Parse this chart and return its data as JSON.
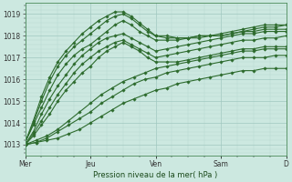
{
  "xlabel": "Pression niveau de la mer( hPa )",
  "bg_color": "#cce8e0",
  "grid_major_color": "#a0c8c0",
  "grid_minor_color": "#b8d8d0",
  "line_color": "#2d6b2d",
  "ylim": [
    1012.5,
    1019.5
  ],
  "xlim": [
    0,
    96
  ],
  "day_labels": [
    "Mer",
    "Jeu",
    "Ven",
    "Sam",
    "D"
  ],
  "day_positions": [
    0,
    24,
    48,
    72,
    96
  ],
  "series": [
    {
      "x": [
        0,
        4,
        8,
        12,
        16,
        20,
        24,
        28,
        32,
        36,
        40,
        44,
        48,
        52,
        56,
        60,
        64,
        68,
        72,
        76,
        80,
        84,
        88,
        92,
        96
      ],
      "y": [
        1013.0,
        1013.1,
        1013.2,
        1013.3,
        1013.5,
        1013.7,
        1014.0,
        1014.3,
        1014.6,
        1014.9,
        1015.1,
        1015.3,
        1015.5,
        1015.6,
        1015.8,
        1015.9,
        1016.0,
        1016.1,
        1016.2,
        1016.3,
        1016.4,
        1016.4,
        1016.5,
        1016.5,
        1016.5
      ]
    },
    {
      "x": [
        0,
        4,
        8,
        12,
        16,
        20,
        24,
        28,
        32,
        36,
        40,
        44,
        48,
        52,
        56,
        60,
        64,
        68,
        72,
        76,
        80,
        84,
        88,
        92,
        96
      ],
      "y": [
        1013.0,
        1013.1,
        1013.3,
        1013.6,
        1013.9,
        1014.2,
        1014.5,
        1014.9,
        1015.2,
        1015.5,
        1015.8,
        1016.0,
        1016.1,
        1016.3,
        1016.4,
        1016.5,
        1016.6,
        1016.7,
        1016.8,
        1016.9,
        1017.0,
        1017.0,
        1017.0,
        1017.1,
        1017.1
      ]
    },
    {
      "x": [
        0,
        4,
        8,
        12,
        16,
        20,
        24,
        28,
        32,
        36,
        40,
        44,
        48,
        52,
        56,
        60,
        64,
        68,
        72,
        76,
        80,
        84,
        88,
        92,
        96
      ],
      "y": [
        1013.0,
        1013.2,
        1013.4,
        1013.7,
        1014.1,
        1014.5,
        1014.9,
        1015.3,
        1015.6,
        1015.9,
        1016.1,
        1016.3,
        1016.5,
        1016.6,
        1016.7,
        1016.8,
        1016.9,
        1017.0,
        1017.1,
        1017.2,
        1017.3,
        1017.3,
        1017.4,
        1017.4,
        1017.4
      ]
    },
    {
      "x": [
        0,
        3,
        6,
        9,
        12,
        15,
        18,
        21,
        24,
        27,
        30,
        33,
        36,
        39,
        42,
        45,
        48,
        52,
        56,
        60,
        64,
        68,
        72,
        76,
        80,
        84,
        88,
        92,
        96
      ],
      "y": [
        1013.0,
        1013.4,
        1013.9,
        1014.4,
        1015.0,
        1015.5,
        1015.9,
        1016.3,
        1016.6,
        1017.0,
        1017.3,
        1017.5,
        1017.7,
        1017.5,
        1017.3,
        1017.0,
        1016.8,
        1016.8,
        1016.8,
        1016.9,
        1017.0,
        1017.1,
        1017.2,
        1017.3,
        1017.4,
        1017.4,
        1017.5,
        1017.5,
        1017.5
      ]
    },
    {
      "x": [
        0,
        3,
        6,
        9,
        12,
        15,
        18,
        21,
        24,
        27,
        30,
        33,
        36,
        39,
        42,
        45,
        48,
        52,
        56,
        60,
        64,
        68,
        72,
        76,
        80,
        84,
        88,
        92,
        96
      ],
      "y": [
        1013.0,
        1013.5,
        1014.1,
        1014.7,
        1015.3,
        1015.8,
        1016.3,
        1016.7,
        1017.0,
        1017.3,
        1017.5,
        1017.7,
        1017.8,
        1017.6,
        1017.4,
        1017.2,
        1017.0,
        1017.1,
        1017.2,
        1017.3,
        1017.4,
        1017.5,
        1017.6,
        1017.7,
        1017.8,
        1017.8,
        1017.9,
        1017.9,
        1018.0
      ]
    },
    {
      "x": [
        0,
        3,
        6,
        9,
        12,
        15,
        18,
        21,
        24,
        27,
        30,
        33,
        36,
        39,
        42,
        45,
        48,
        52,
        56,
        60,
        64,
        68,
        72,
        76,
        80,
        84,
        88,
        92,
        96
      ],
      "y": [
        1013.0,
        1013.6,
        1014.4,
        1015.1,
        1015.7,
        1016.2,
        1016.7,
        1017.1,
        1017.4,
        1017.7,
        1017.9,
        1018.0,
        1018.1,
        1017.9,
        1017.7,
        1017.5,
        1017.3,
        1017.4,
        1017.5,
        1017.6,
        1017.7,
        1017.8,
        1017.9,
        1018.0,
        1018.1,
        1018.1,
        1018.2,
        1018.2,
        1018.2
      ]
    },
    {
      "x": [
        0,
        3,
        6,
        9,
        12,
        15,
        18,
        21,
        24,
        27,
        30,
        33,
        36,
        39,
        42,
        45,
        48,
        52,
        56,
        60,
        64,
        68,
        72,
        76,
        80,
        84,
        88,
        92,
        96
      ],
      "y": [
        1013.1,
        1013.9,
        1014.7,
        1015.5,
        1016.2,
        1016.7,
        1017.1,
        1017.4,
        1017.6,
        1017.9,
        1018.2,
        1018.5,
        1018.7,
        1018.5,
        1018.2,
        1018.0,
        1017.8,
        1017.8,
        1017.8,
        1017.9,
        1018.0,
        1018.0,
        1018.0,
        1018.1,
        1018.2,
        1018.2,
        1018.3,
        1018.3,
        1018.3
      ]
    },
    {
      "x": [
        0,
        3,
        6,
        9,
        12,
        15,
        18,
        21,
        24,
        27,
        30,
        33,
        36,
        39,
        42,
        45,
        48,
        52,
        56,
        60,
        64,
        68,
        72,
        76,
        80,
        84,
        88,
        92,
        96
      ],
      "y": [
        1013.1,
        1014.0,
        1015.0,
        1015.9,
        1016.6,
        1017.1,
        1017.5,
        1017.8,
        1018.1,
        1018.4,
        1018.7,
        1018.9,
        1019.0,
        1018.8,
        1018.5,
        1018.2,
        1018.0,
        1018.0,
        1017.9,
        1017.9,
        1018.0,
        1018.0,
        1018.0,
        1018.1,
        1018.2,
        1018.3,
        1018.4,
        1018.4,
        1018.5
      ]
    },
    {
      "x": [
        0,
        3,
        6,
        9,
        12,
        15,
        18,
        21,
        24,
        27,
        30,
        33,
        36,
        39,
        42,
        45,
        48,
        52,
        56,
        60,
        64,
        68,
        72,
        76,
        80,
        84,
        88,
        92,
        96
      ],
      "y": [
        1013.1,
        1014.1,
        1015.2,
        1016.1,
        1016.8,
        1017.3,
        1017.7,
        1018.1,
        1018.4,
        1018.7,
        1018.9,
        1019.1,
        1019.1,
        1018.9,
        1018.6,
        1018.3,
        1018.0,
        1017.9,
        1017.9,
        1017.9,
        1017.9,
        1018.0,
        1018.1,
        1018.2,
        1018.3,
        1018.4,
        1018.5,
        1018.5,
        1018.5
      ]
    }
  ]
}
